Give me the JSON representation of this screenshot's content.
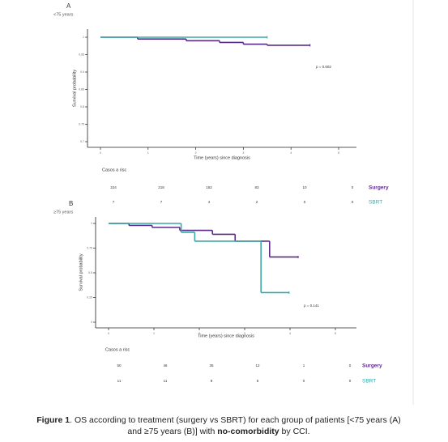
{
  "chart_data": [
    {
      "type": "line",
      "step": true,
      "label": "A",
      "subtitle": "<75 years",
      "ylabel": "Survival probability",
      "xlabel": "Time (years) since diagnosis",
      "annotation": "p = 0.602",
      "xlim": [
        0,
        5
      ],
      "xticks": [
        0,
        1,
        2,
        3,
        4,
        5
      ],
      "ylim": [
        0.7,
        1
      ],
      "yticks": [
        0.7,
        0.75,
        0.8,
        0.85,
        0.9,
        0.95,
        1
      ],
      "series": [
        {
          "name": "Surgery",
          "color": "#5b2a86",
          "x": [
            0,
            0.78,
            1.8,
            2.5,
            3.0,
            3.5,
            4.4
          ],
          "values": [
            1,
            0.995,
            0.99,
            0.985,
            0.98,
            0.977,
            0.977
          ]
        },
        {
          "name": "SBRT",
          "color": "#3aa8a8",
          "x": [
            0,
            3.5
          ],
          "values": [
            1,
            1
          ]
        }
      ],
      "risk_table": {
        "title": "Casos a risc",
        "rows": [
          {
            "name": "Surgery",
            "values": [
              224,
              218,
              152,
              83,
              10,
              0
            ]
          },
          {
            "name": "SBRT",
            "values": [
              7,
              7,
              4,
              2,
              0,
              0
            ]
          }
        ]
      }
    },
    {
      "type": "line",
      "step": true,
      "label": "B",
      "subtitle": "≥75 years",
      "ylabel": "Survival probability",
      "xlabel": "Time (years) since diagnosis",
      "annotation": "p = 0.141",
      "xlim": [
        0,
        5
      ],
      "xticks": [
        0,
        1,
        2,
        3,
        4,
        5
      ],
      "ylim": [
        0,
        1
      ],
      "yticks": [
        0,
        0.25,
        0.5,
        0.75,
        1
      ],
      "series": [
        {
          "name": "Surgery",
          "color": "#5b2a86",
          "x": [
            0,
            0.45,
            0.96,
            1.57,
            2.29,
            2.79,
            3.55,
            4.18
          ],
          "values": [
            1,
            0.98,
            0.96,
            0.93,
            0.89,
            0.82,
            0.66,
            0.66
          ]
        },
        {
          "name": "SBRT",
          "color": "#3aa8a8",
          "x": [
            0,
            1.6,
            1.9,
            3.36,
            3.98
          ],
          "values": [
            1,
            0.91,
            0.82,
            0.3,
            0.3
          ]
        }
      ],
      "risk_table": {
        "title": "Casos a risc",
        "rows": [
          {
            "name": "Surgery",
            "values": [
              50,
              46,
              35,
              12,
              1,
              0
            ]
          },
          {
            "name": "SBRT",
            "values": [
              11,
              11,
              9,
              6,
              0,
              0
            ]
          }
        ]
      }
    }
  ],
  "caption": [
    {
      "text": "Figure 1",
      "bold": true
    },
    {
      "text": ". OS according to treatment (surgery vs SBRT) for each group of patients [<75 years (A) and ≥75 years (B)] with ",
      "bold": false
    },
    {
      "text": "no-comorbidity",
      "bold": true
    },
    {
      "text": " by CCI.",
      "bold": false
    }
  ]
}
